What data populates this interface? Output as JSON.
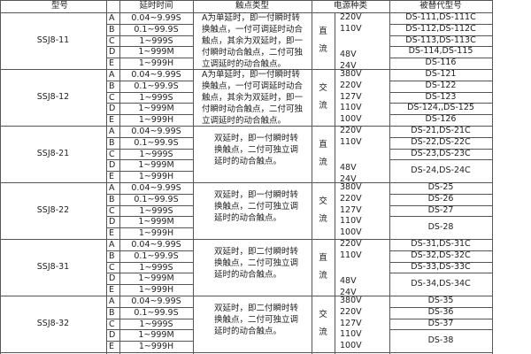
{
  "header": {
    "model": "型号",
    "time": "延时时间",
    "contact": "触点类型",
    "power": "电源种类",
    "replaced": "被替代型号"
  },
  "groups": [
    {
      "model": "SSJ8-11",
      "rows": [
        {
          "letter": "A",
          "time": "0.04~9.99S"
        },
        {
          "letter": "B",
          "time": "0.1~99.9S"
        },
        {
          "letter": "C",
          "time": "1~999S"
        },
        {
          "letter": "D",
          "time": "1~999M"
        },
        {
          "letter": "E",
          "time": "1~999H"
        }
      ],
      "contact": "A为单延时，即一付瞬时转换触点，一付可调延时动合触点，其余为双延时，即一付瞬时动合触点，二付可独立调延时的动合触点。",
      "power": "直流",
      "voltages": [
        "220V",
        "110V",
        "48V",
        "24V"
      ],
      "replaced": [
        "DS-111,DS-111C",
        "DS-112,DS-112C",
        "DS-113,DS-113C",
        "DS-114,DS-115",
        "DS-116"
      ]
    },
    {
      "model": "SSJ8-12",
      "rows": [
        {
          "letter": "A",
          "time": "0.04~9.99S"
        },
        {
          "letter": "B",
          "time": "0.1~99.9S"
        },
        {
          "letter": "C",
          "time": "1~999S"
        },
        {
          "letter": "D",
          "time": "1~999M"
        },
        {
          "letter": "E",
          "time": "1~999H"
        }
      ],
      "contact": "A为单延时，即一付瞬时转换触点，一付可调延时动合触点，其余为双延时，即一付瞬时动合触点，二付可独立调延时的动合触点。",
      "power": "交流",
      "voltages": [
        "380V",
        "220V",
        "127V",
        "110V",
        "100V"
      ],
      "replaced": [
        "DS-121",
        "DS-122",
        "DS-123",
        "DS-124,,DS-125",
        "DS-126"
      ]
    },
    {
      "model": "SSJ8-21",
      "rows": [
        {
          "letter": "A",
          "time": "0.04~9.99S"
        },
        {
          "letter": "B",
          "time": "0.1~99.9S"
        },
        {
          "letter": "C",
          "time": "1~999S"
        },
        {
          "letter": "D",
          "time": "1~999M"
        },
        {
          "letter": "E",
          "time": "1~999H"
        }
      ],
      "contact": "双延时，即一付瞬时转换触点，二付可独立调延时的动合触点。",
      "power": "直流",
      "voltages": [
        "220V",
        "110V",
        "48V",
        "24V"
      ],
      "replaced": [
        "DS-21,DS-21C",
        "DS-22,DS-22C",
        "DS-23,DS-23C",
        "DS-24,DS-24C"
      ]
    },
    {
      "model": "SSJ8-22",
      "rows": [
        {
          "letter": "A",
          "time": "0.04~9.99S"
        },
        {
          "letter": "B",
          "time": "0.1~99.9S"
        },
        {
          "letter": "C",
          "time": "1~999S"
        },
        {
          "letter": "D",
          "time": "1~999M"
        },
        {
          "letter": "E",
          "time": "1~999H"
        }
      ],
      "contact": "双延时，即一付瞬时转换触点，二付可独立调延时的动合触点。",
      "power": "交流",
      "voltages": [
        "380V",
        "220V",
        "127V",
        "110V",
        "100V"
      ],
      "replaced": [
        "DS-25",
        "DS-26",
        "DS-27",
        "DS-28"
      ]
    },
    {
      "model": "SSJ8-31",
      "rows": [
        {
          "letter": "A",
          "time": "0.04~9.99S"
        },
        {
          "letter": "B",
          "time": "0.1~99.9S"
        },
        {
          "letter": "C",
          "time": "1~999S"
        },
        {
          "letter": "D",
          "time": "1~999M"
        },
        {
          "letter": "E",
          "time": "1~999H"
        }
      ],
      "contact": "双延时，即二付瞬时转换触点，二付可独立调延时的动合触点。",
      "power": "直流",
      "voltages": [
        "220V",
        "110V",
        "48V",
        "24V"
      ],
      "replaced": [
        "DS-31,DS-31C",
        "DS-32,DS-32C",
        "DS-33,DS-33C",
        "DS-34,DS-34C"
      ]
    },
    {
      "model": "SSJ8-32",
      "rows": [
        {
          "letter": "A",
          "time": "0.04~9.99S"
        },
        {
          "letter": "B",
          "time": "0.1~99.9S"
        },
        {
          "letter": "C",
          "time": "1~999S"
        },
        {
          "letter": "D",
          "time": "1~999M"
        },
        {
          "letter": "E",
          "time": "1~999H"
        }
      ],
      "contact": "双延时，即二付瞬时转换触点，二付可独立调延时的动合触点。",
      "power": "交流",
      "voltages": [
        "380V",
        "220V",
        "127V",
        "110V",
        "100V"
      ],
      "replaced": [
        "DS-35",
        "DS-36",
        "DS-37",
        "DS-38"
      ]
    }
  ]
}
